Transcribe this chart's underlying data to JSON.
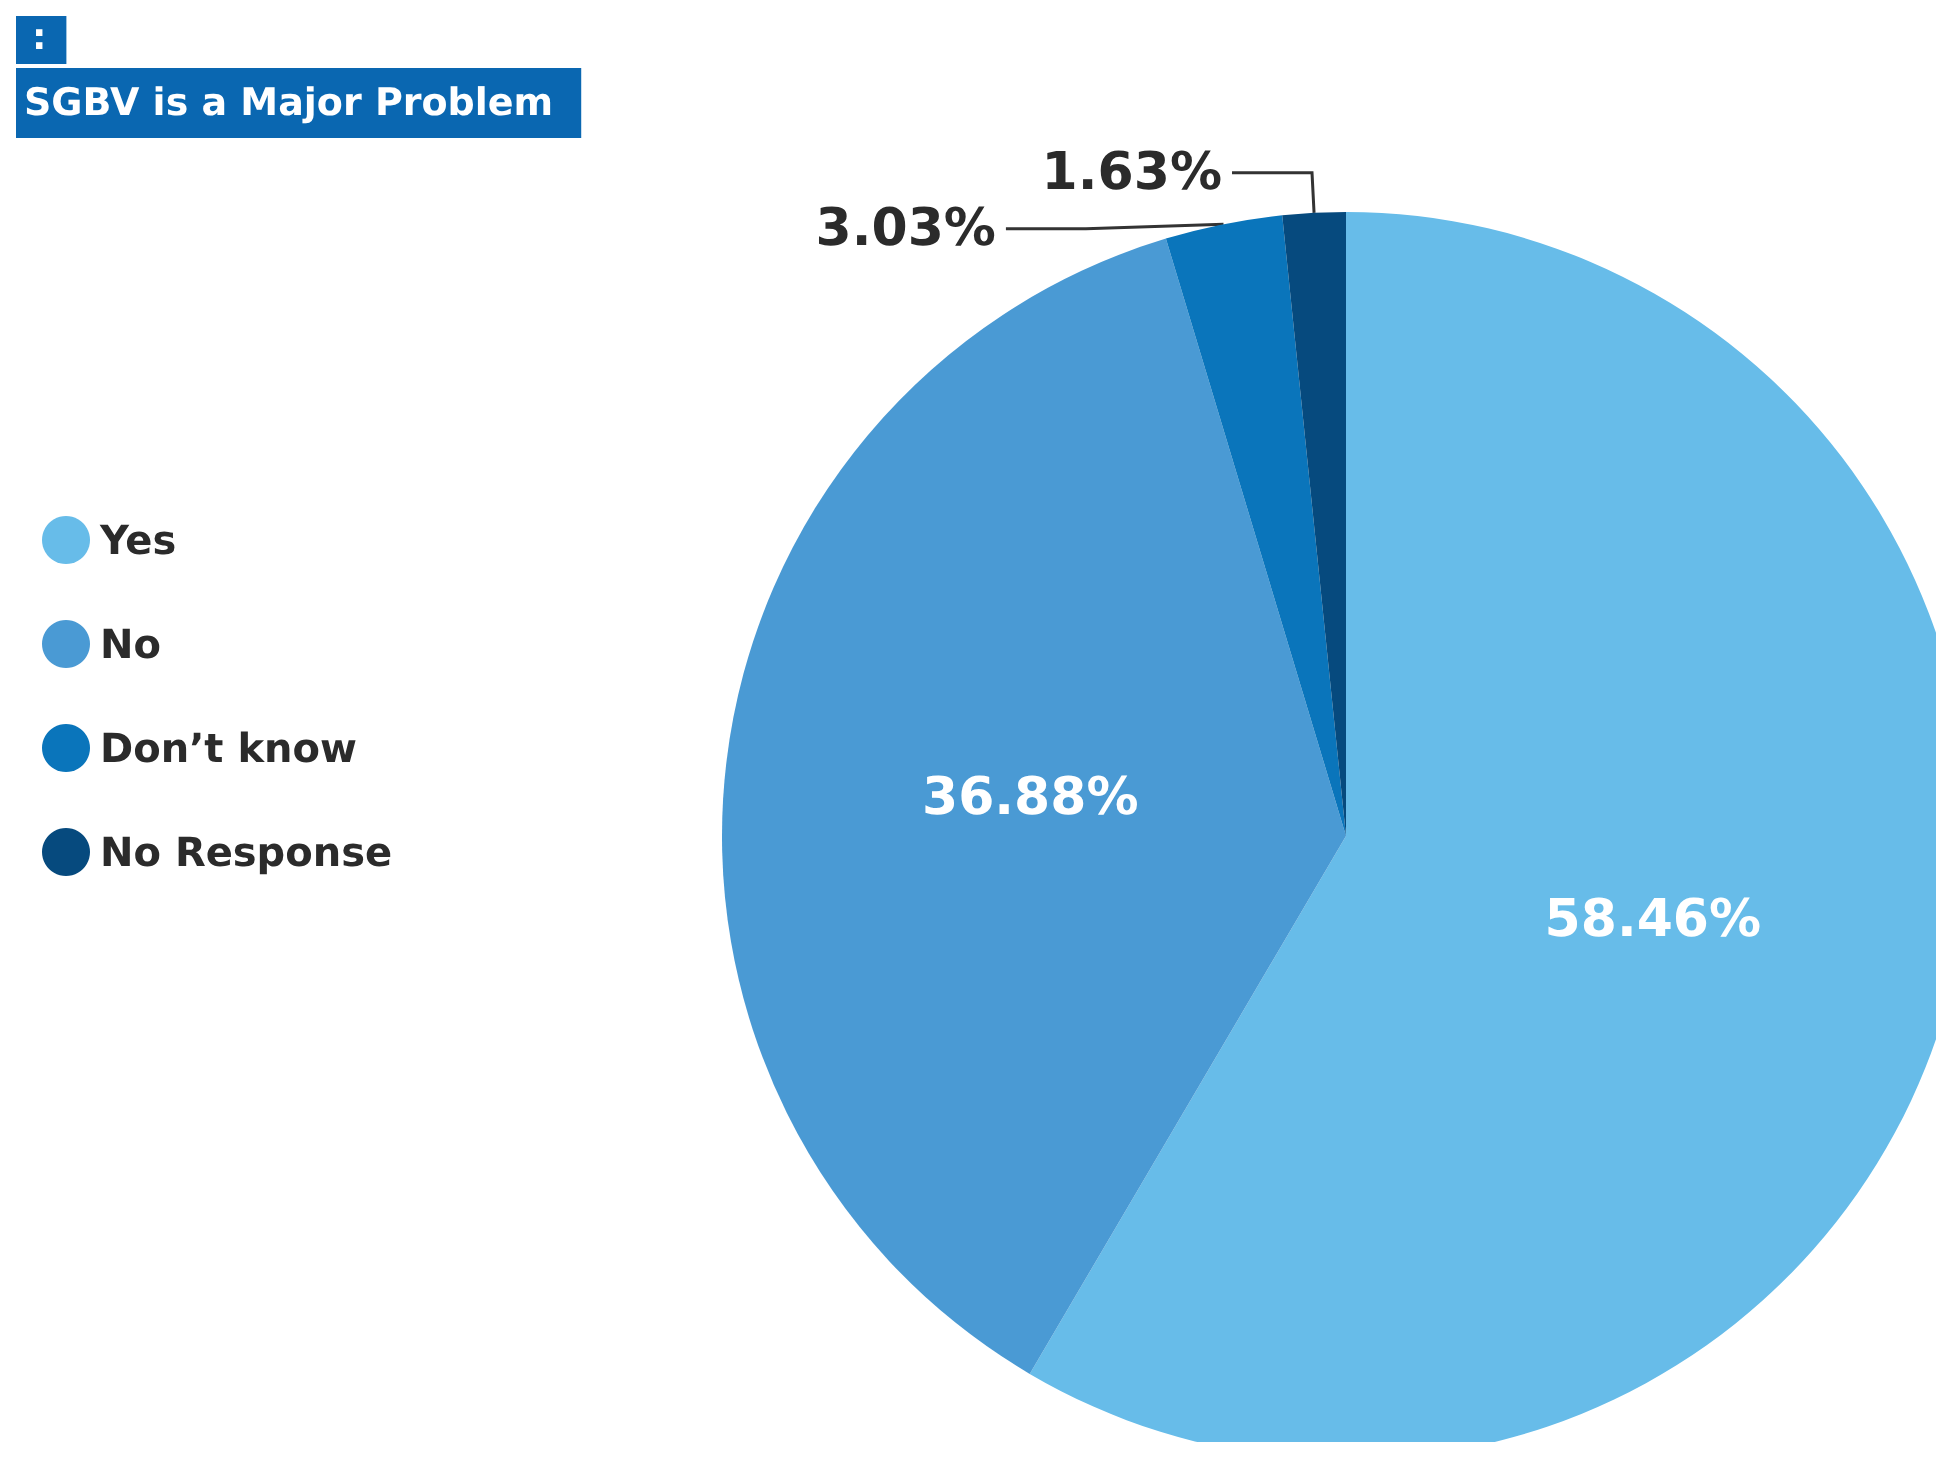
{
  "chart_data": {
    "type": "pie",
    "title": "SGBV is a Major Problem",
    "subtitle": ":",
    "categories": [
      "Yes",
      "No",
      "Don’t know",
      "No Response"
    ],
    "values": [
      58.46,
      36.88,
      3.03,
      1.63
    ],
    "value_labels": [
      "58.46%",
      "36.88%",
      "3.03%",
      "1.63%"
    ],
    "colors": [
      "#67bce9",
      "#4a9ad4",
      "#0a75bb",
      "#064a7e"
    ],
    "legend": "left"
  }
}
